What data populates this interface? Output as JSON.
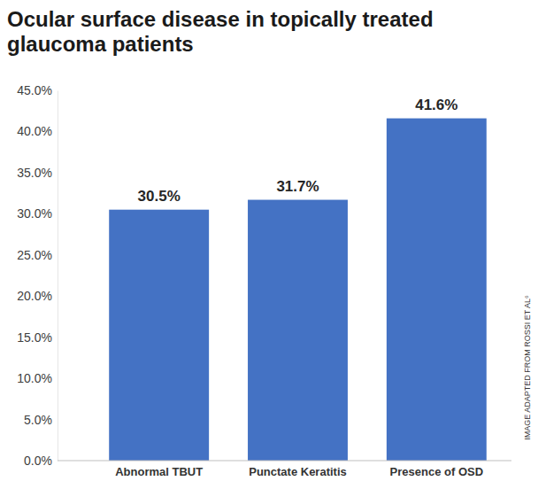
{
  "chart_data": {
    "type": "bar",
    "title": "Ocular surface disease in topically treated glaucoma patients",
    "categories": [
      "Abnormal TBUT",
      "Punctate Keratitis",
      "Presence of OSD"
    ],
    "values": [
      30.5,
      31.7,
      41.6
    ],
    "value_labels": [
      "30.5%",
      "31.7%",
      "41.6%"
    ],
    "data_labels": true,
    "color": "#4472c4",
    "grid": false,
    "ylim": [
      0,
      45
    ],
    "yticks": [
      {
        "value": 0,
        "label": "0.0%"
      },
      {
        "value": 5,
        "label": "5.0%"
      },
      {
        "value": 10,
        "label": "10.0%"
      },
      {
        "value": 15,
        "label": "15.0%"
      },
      {
        "value": 20,
        "label": "20.0%"
      },
      {
        "value": 25,
        "label": "25.0%"
      },
      {
        "value": 30,
        "label": "30.0%"
      },
      {
        "value": 35,
        "label": "35.0%"
      },
      {
        "value": 40,
        "label": "40.0%"
      },
      {
        "value": 45,
        "label": "45.0%"
      }
    ],
    "annotations": [
      "IMAGE ADAPTED FROM ROSSI ET AL⁶"
    ]
  }
}
